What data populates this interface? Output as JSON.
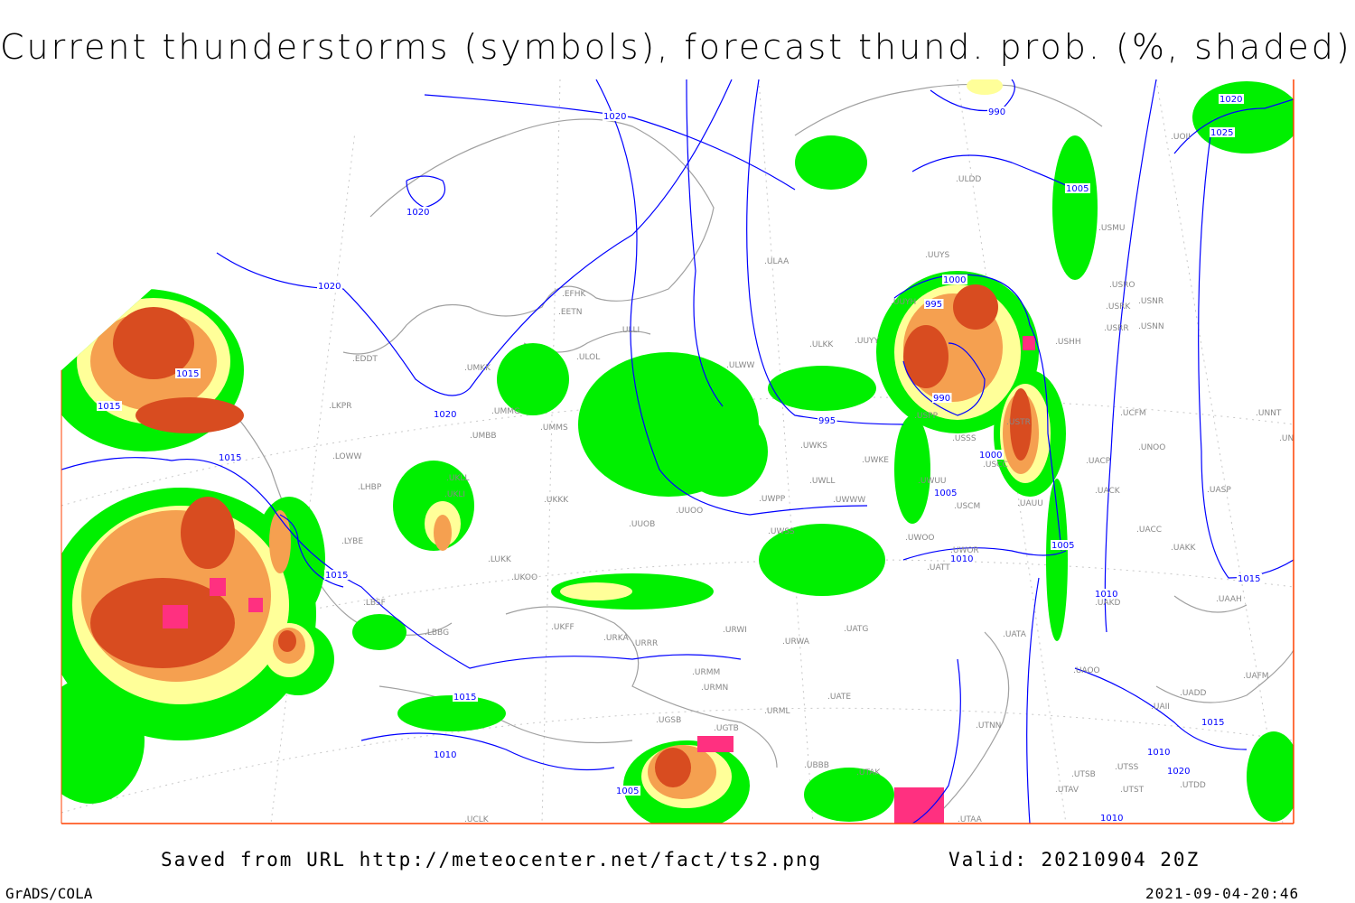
{
  "title": "Current thunderstorms (symbols), forecast thund. prob. (%, shaded)",
  "footer": {
    "saved_from": "Saved from URL http://meteocenter.net/fact/ts2.png",
    "valid": "Valid: 20210904 20Z",
    "software": "GrADS/COLA",
    "timestamp": "2021-09-04-20:46"
  },
  "colors": {
    "isobar": "#0000ff",
    "coastline": "#a0a0a0",
    "prob_low": "#00f000",
    "prob_mid": "#ffff99",
    "prob_high": "#f5a050",
    "prob_max": "#d84c20",
    "thunderstorm_symbol": "#ff3080",
    "frame": "#ff4000"
  },
  "isobar_labels": [
    "1020",
    "1020",
    "1020",
    "1020",
    "1015",
    "1015",
    "1015",
    "1015",
    "1015",
    "1010",
    "1010",
    "1005",
    "990",
    "995",
    "990",
    "995",
    "1000",
    "1000",
    "1005",
    "1005",
    "1005",
    "1020",
    "1025",
    "1010",
    "1015",
    "1010",
    "1015",
    "1020",
    "1010"
  ],
  "stations": [
    "EFHK",
    "EETN",
    "ULLI",
    "UMKK",
    "ULOL",
    "UMMG",
    "UMMS",
    "UMBB",
    "EDDT",
    "LKPR",
    "LOWW",
    "LHBP",
    "UKLL",
    "UKLI",
    "UKKK",
    "UUOO",
    "UUOB",
    "LYBE",
    "LUKK",
    "UKOO",
    "LBSF",
    "LBBG",
    "UKFF",
    "URKA",
    "URRR",
    "URWI",
    "URWA",
    "UATG",
    "UATA",
    "UATE",
    "URMM",
    "URMN",
    "URML",
    "UGSB",
    "UGTB",
    "UBBB",
    "UTAK",
    "UTAA",
    "UTNN",
    "UCLK",
    "ULAA",
    "ULWW",
    "UUYY",
    "ULKK",
    "UWKS",
    "UWKE",
    "UWLL",
    "UWWW",
    "UWPP",
    "UWSS",
    "UWUU",
    "USPP",
    "USSS",
    "USTR",
    "USCC",
    "USCM",
    "UAUU",
    "UWOO",
    "UWOR",
    "UATT",
    "USHH",
    "USRR",
    "USRK",
    "USRO",
    "USNR",
    "USNN",
    "USMU",
    "ULDD",
    "UUYS",
    "UUYH",
    "UACP",
    "UACK",
    "UACC",
    "UAKK",
    "UAKD",
    "UAAH",
    "UAOO",
    "UNOO",
    "UNNT",
    "UNBB",
    "UASP",
    "UCFM",
    "UTSS",
    "UTSB",
    "UTAV",
    "UTST",
    "UTDD",
    "UAII",
    "UAFM",
    "UADD",
    "UOII"
  ]
}
